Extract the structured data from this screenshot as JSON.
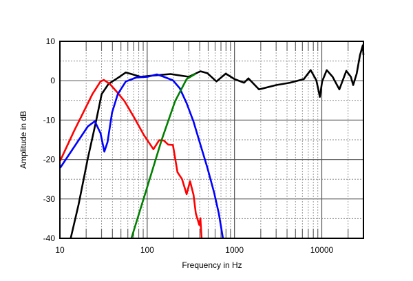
{
  "chart_data": {
    "type": "line",
    "title": "",
    "xlabel": "Frequency in Hz",
    "ylabel": "Amplitude in dB",
    "xscale": "log",
    "xlim": [
      10,
      30000
    ],
    "ylim": [
      -40,
      10
    ],
    "grid": true,
    "legend": "none",
    "xticks": [
      10,
      100,
      1000,
      10000
    ],
    "xtick_labels": [
      "10",
      "100",
      "1000",
      "10000"
    ],
    "yticks": [
      10,
      0,
      -10,
      -20,
      -30,
      -40
    ],
    "ytick_labels": [
      "10",
      "0",
      "-10",
      "-20",
      "-30",
      "-40"
    ],
    "series": [
      {
        "color": "#000000",
        "x": [
          13.3,
          16.4,
          20.9,
          25.9,
          30.1,
          36.1,
          46,
          56.9,
          66,
          84,
          114,
          185,
          300,
          407,
          489,
          622,
          795,
          1000,
          1288,
          1445,
          1910,
          3006,
          4325,
          6220,
          7460,
          8660,
          9510,
          10100,
          11400,
          13300,
          15900,
          19100,
          21500,
          22900,
          25100,
          27400,
          29500,
          30000
        ],
        "y": [
          -40,
          -31.4,
          -19.7,
          -10.4,
          -3.4,
          -0.8,
          0.7,
          2.1,
          1.7,
          1.0,
          1.3,
          1.7,
          1.0,
          2.4,
          1.9,
          -0.2,
          1.8,
          0.4,
          -0.5,
          0.6,
          -2.2,
          -1.1,
          -0.5,
          0.4,
          2.7,
          0.1,
          -4.1,
          -0.2,
          2.7,
          1.0,
          -2.2,
          2.5,
          1.0,
          -1.1,
          1.8,
          6.5,
          9.0,
          6.5
        ]
      },
      {
        "color": "#ff0000",
        "x": [
          10.1,
          14.6,
          19.7,
          23.6,
          29.2,
          31.9,
          37.2,
          46,
          55,
          70.3,
          92.3,
          118,
          137,
          155,
          174,
          197,
          222,
          251,
          283,
          310,
          340,
          361,
          395,
          407,
          420
        ],
        "y": [
          -20.3,
          -12.7,
          -6.9,
          -3.4,
          -0.2,
          0.2,
          -0.8,
          -3.1,
          -5.2,
          -9.2,
          -13.9,
          -17.4,
          -15.1,
          -15.2,
          -16.2,
          -16.3,
          -23.2,
          -25.0,
          -28.8,
          -25.5,
          -29.0,
          -33.7,
          -36.6,
          -34.9,
          -40
        ]
      },
      {
        "color": "#0000ff",
        "x": [
          10.1,
          16.4,
          20.9,
          25.1,
          29.2,
          32.3,
          35.1,
          39.6,
          46,
          56.9,
          74.8,
          101,
          129,
          155,
          197,
          236,
          283,
          340,
          407,
          489,
          586,
          662,
          738
        ],
        "y": [
          -22.1,
          -15.1,
          -11.6,
          -10.3,
          -13.3,
          -18.0,
          -15.6,
          -8.1,
          -3.4,
          -0.2,
          0.8,
          1.0,
          1.6,
          1.0,
          0.1,
          -1.9,
          -5.7,
          -10.4,
          -16.2,
          -22.1,
          -28.5,
          -33.7,
          -40
        ]
      },
      {
        "color": "#008000",
        "x": [
          66,
          101,
          146,
          209,
          283,
          361
        ],
        "y": [
          -40,
          -26.7,
          -15.1,
          -5.2,
          0.4,
          1.8
        ]
      }
    ]
  }
}
